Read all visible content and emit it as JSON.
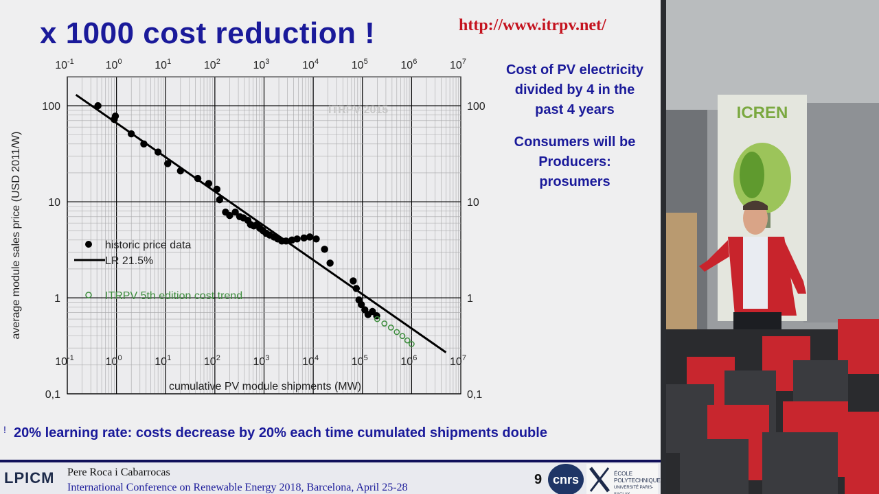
{
  "slide": {
    "title": "x 1000 cost reduction !",
    "url": "http://www.itrpv.net/",
    "side_text_1": [
      "Cost of PV electricity",
      "divided by 4 in the",
      "past 4 years"
    ],
    "side_text_2": [
      "Consumers will be",
      "Producers:",
      "prosumers"
    ],
    "conclusion": "20% learning rate: costs decrease by 20% each time cumulated shipments double",
    "footer": {
      "logo": "LPICM",
      "author": "Pere Roca i Cabarrocas",
      "conference": "International Conference on Renewable Energy 2018, Barcelona, April 25-28",
      "page": "9",
      "logo_cnrs": "cnrs",
      "logo_poly": [
        "ÉCOLE",
        "POLYTECHNIQUE",
        "UNIVERSITÉ PARIS-SACLAY"
      ]
    }
  },
  "banner": {
    "title": "ICREN"
  },
  "chart_data": {
    "type": "scatter",
    "title": "",
    "xlabel": "cumulative PV module shipments (MW)",
    "ylabel": "average module sales price (USD 2011/W)",
    "x_scale": "log",
    "y_scale": "log",
    "xlim": [
      0.1,
      10000000
    ],
    "ylim": [
      0.1,
      200
    ],
    "x_tick_labels": [
      {
        "base": "10",
        "exp": "-1"
      },
      {
        "base": "10",
        "exp": "0"
      },
      {
        "base": "10",
        "exp": "1"
      },
      {
        "base": "10",
        "exp": "2"
      },
      {
        "base": "10",
        "exp": "3"
      },
      {
        "base": "10",
        "exp": "4"
      },
      {
        "base": "10",
        "exp": "5"
      },
      {
        "base": "10",
        "exp": "6"
      },
      {
        "base": "10",
        "exp": "7"
      }
    ],
    "y_tick_labels": [
      "100",
      "10",
      "1",
      "0,1"
    ],
    "y_tick_values": [
      100,
      10,
      1,
      0.1
    ],
    "grid": true,
    "watermark": "ITRPV 2015",
    "legend_position": "left",
    "series": [
      {
        "name": "historic price data",
        "kind": "points",
        "color": "#000000",
        "points": [
          [
            0.42,
            100
          ],
          [
            0.95,
            78
          ],
          [
            0.9,
            72
          ],
          [
            2.0,
            51
          ],
          [
            3.6,
            40
          ],
          [
            7.0,
            33
          ],
          [
            11,
            25
          ],
          [
            20,
            21
          ],
          [
            45,
            17.5
          ],
          [
            75,
            15.5
          ],
          [
            110,
            13.5
          ],
          [
            125,
            10.5
          ],
          [
            165,
            7.8
          ],
          [
            200,
            7.2
          ],
          [
            260,
            7.8
          ],
          [
            320,
            7.0
          ],
          [
            380,
            6.8
          ],
          [
            470,
            6.4
          ],
          [
            530,
            5.8
          ],
          [
            620,
            5.6
          ],
          [
            720,
            5.8
          ],
          [
            820,
            5.3
          ],
          [
            950,
            5.0
          ],
          [
            1100,
            4.7
          ],
          [
            1300,
            4.5
          ],
          [
            1600,
            4.3
          ],
          [
            1900,
            4.1
          ],
          [
            2300,
            3.9
          ],
          [
            2800,
            3.9
          ],
          [
            3700,
            4.0
          ],
          [
            4700,
            4.1
          ],
          [
            6500,
            4.2
          ],
          [
            8500,
            4.3
          ],
          [
            11500,
            4.1
          ],
          [
            17000,
            3.2
          ],
          [
            22000,
            2.3
          ],
          [
            65000,
            1.5
          ],
          [
            75000,
            1.25
          ],
          [
            85000,
            0.95
          ],
          [
            95000,
            0.85
          ],
          [
            112000,
            0.75
          ],
          [
            130000,
            0.67
          ],
          [
            160000,
            0.72
          ],
          [
            195000,
            0.65
          ]
        ]
      },
      {
        "name": "LR 21.5%",
        "kind": "line",
        "color": "#000000",
        "points": [
          [
            0.15,
            130
          ],
          [
            5000000,
            0.27
          ]
        ]
      },
      {
        "name": "ITRPV 5th edition cost trend",
        "kind": "points-open",
        "color": "#3c8c3c",
        "points": [
          [
            200000,
            0.6
          ],
          [
            280000,
            0.54
          ],
          [
            380000,
            0.49
          ],
          [
            500000,
            0.44
          ],
          [
            650000,
            0.4
          ],
          [
            820000,
            0.36
          ],
          [
            1000000,
            0.33
          ]
        ]
      }
    ]
  }
}
